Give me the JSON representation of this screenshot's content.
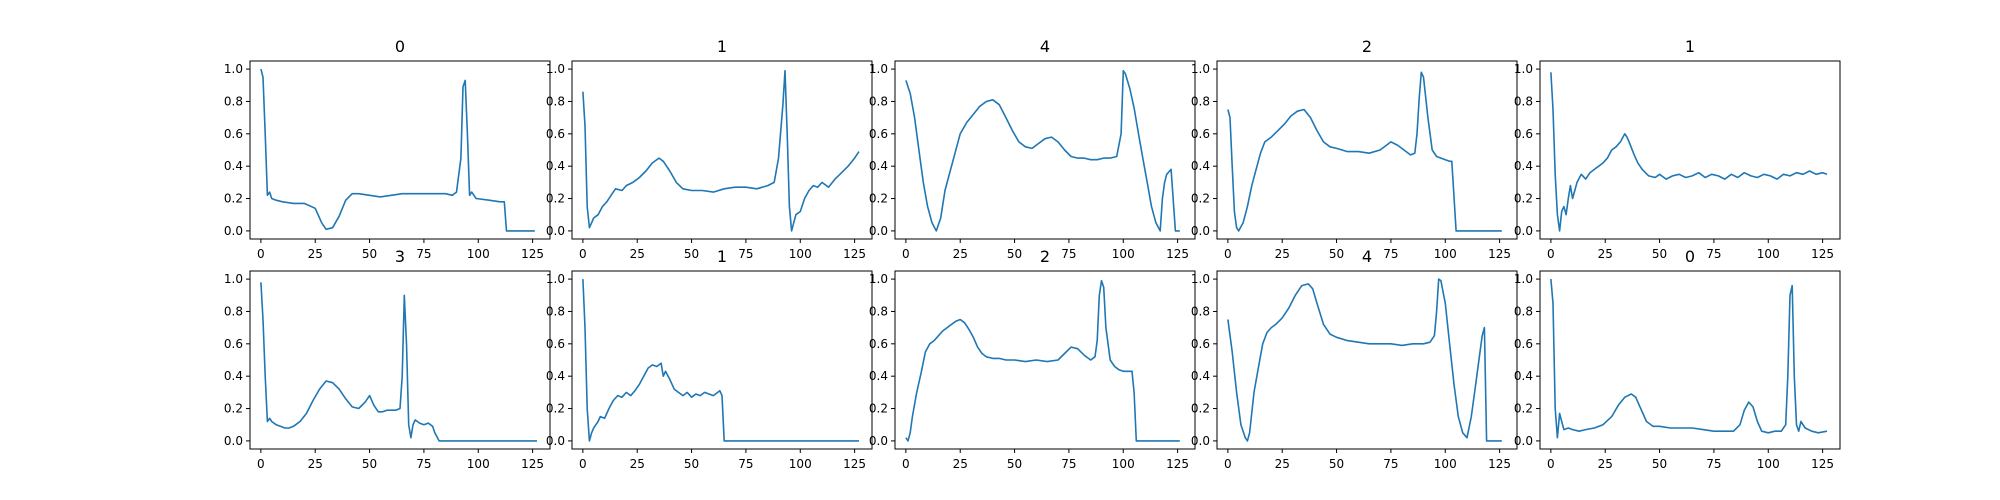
{
  "figure": {
    "rows": 2,
    "cols": 5
  },
  "style": {
    "line_color": "#1f77b4",
    "axis_color": "#000000",
    "background": "#ffffff"
  },
  "chart_data": [
    {
      "type": "line",
      "title": "0",
      "xlabel": "",
      "ylabel": "",
      "xlim": [
        -5,
        133
      ],
      "ylim": [
        -0.05,
        1.05
      ],
      "xticks": [
        0,
        25,
        50,
        75,
        100,
        125
      ],
      "yticks": [
        0.0,
        0.2,
        0.4,
        0.6,
        0.8,
        1.0
      ],
      "grid": false,
      "x": [
        0,
        1,
        2,
        3,
        4,
        5,
        7,
        10,
        15,
        20,
        25,
        28,
        30,
        33,
        36,
        39,
        42,
        45,
        50,
        55,
        60,
        65,
        70,
        75,
        80,
        85,
        88,
        90,
        92,
        93,
        94,
        95,
        96,
        97,
        99,
        105,
        110,
        112,
        113,
        118,
        122,
        126
      ],
      "y": [
        1.0,
        0.95,
        0.6,
        0.22,
        0.24,
        0.2,
        0.19,
        0.18,
        0.17,
        0.17,
        0.14,
        0.05,
        0.01,
        0.02,
        0.09,
        0.19,
        0.23,
        0.23,
        0.22,
        0.21,
        0.22,
        0.23,
        0.23,
        0.23,
        0.23,
        0.23,
        0.22,
        0.24,
        0.45,
        0.89,
        0.93,
        0.6,
        0.22,
        0.24,
        0.2,
        0.19,
        0.18,
        0.18,
        0.0,
        0.0,
        0.0,
        0.0
      ]
    },
    {
      "type": "line",
      "title": "1",
      "xlabel": "",
      "ylabel": "",
      "xlim": [
        -5,
        133
      ],
      "ylim": [
        -0.05,
        1.05
      ],
      "xticks": [
        0,
        25,
        50,
        75,
        100,
        125
      ],
      "yticks": [
        0.0,
        0.2,
        0.4,
        0.6,
        0.8,
        1.0
      ],
      "grid": false,
      "x": [
        0,
        1,
        2,
        3,
        4,
        5,
        7,
        9,
        11,
        13,
        15,
        18,
        20,
        23,
        26,
        29,
        32,
        35,
        37,
        40,
        43,
        46,
        50,
        55,
        60,
        65,
        70,
        75,
        80,
        85,
        88,
        90,
        92,
        93,
        94,
        95,
        96,
        97,
        98,
        100,
        102,
        104,
        106,
        108,
        110,
        113,
        116,
        119,
        122,
        125,
        127
      ],
      "y": [
        0.86,
        0.65,
        0.15,
        0.02,
        0.05,
        0.08,
        0.1,
        0.15,
        0.18,
        0.22,
        0.26,
        0.25,
        0.28,
        0.3,
        0.33,
        0.37,
        0.42,
        0.45,
        0.43,
        0.37,
        0.3,
        0.26,
        0.25,
        0.25,
        0.24,
        0.26,
        0.27,
        0.27,
        0.26,
        0.28,
        0.3,
        0.45,
        0.78,
        0.99,
        0.6,
        0.15,
        0.0,
        0.05,
        0.1,
        0.12,
        0.2,
        0.25,
        0.28,
        0.27,
        0.3,
        0.27,
        0.32,
        0.36,
        0.4,
        0.45,
        0.49
      ]
    },
    {
      "type": "line",
      "title": "4",
      "xlabel": "",
      "ylabel": "",
      "xlim": [
        -5,
        133
      ],
      "ylim": [
        -0.05,
        1.05
      ],
      "xticks": [
        0,
        25,
        50,
        75,
        100,
        125
      ],
      "yticks": [
        0.0,
        0.2,
        0.4,
        0.6,
        0.8,
        1.0
      ],
      "grid": false,
      "x": [
        0,
        2,
        4,
        6,
        8,
        10,
        12,
        14,
        16,
        18,
        20,
        22,
        25,
        28,
        31,
        34,
        37,
        40,
        43,
        46,
        49,
        52,
        55,
        58,
        61,
        64,
        67,
        70,
        73,
        76,
        79,
        82,
        85,
        88,
        91,
        94,
        97,
        99,
        100,
        101,
        103,
        105,
        107,
        109,
        111,
        113,
        115,
        117,
        118,
        119,
        120,
        122,
        124,
        126
      ],
      "y": [
        0.93,
        0.85,
        0.7,
        0.5,
        0.3,
        0.15,
        0.05,
        0.0,
        0.08,
        0.25,
        0.35,
        0.45,
        0.6,
        0.67,
        0.72,
        0.77,
        0.8,
        0.81,
        0.78,
        0.7,
        0.62,
        0.55,
        0.52,
        0.51,
        0.54,
        0.57,
        0.58,
        0.55,
        0.5,
        0.46,
        0.45,
        0.45,
        0.44,
        0.44,
        0.45,
        0.45,
        0.46,
        0.6,
        0.99,
        0.97,
        0.88,
        0.76,
        0.6,
        0.45,
        0.3,
        0.15,
        0.05,
        0.0,
        0.2,
        0.3,
        0.35,
        0.38,
        0.0,
        0.0
      ]
    },
    {
      "type": "line",
      "title": "2",
      "xlabel": "",
      "ylabel": "",
      "xlim": [
        -5,
        133
      ],
      "ylim": [
        -0.05,
        1.05
      ],
      "xticks": [
        0,
        25,
        50,
        75,
        100,
        125
      ],
      "yticks": [
        0.0,
        0.2,
        0.4,
        0.6,
        0.8,
        1.0
      ],
      "grid": false,
      "x": [
        0,
        1,
        2,
        3,
        4,
        5,
        7,
        9,
        11,
        13,
        15,
        17,
        20,
        23,
        26,
        29,
        32,
        35,
        38,
        41,
        44,
        47,
        50,
        55,
        60,
        65,
        70,
        73,
        75,
        78,
        81,
        84,
        86,
        87,
        88,
        89,
        90,
        92,
        94,
        96,
        98,
        100,
        102,
        103,
        105,
        110,
        115,
        120,
        126
      ],
      "y": [
        0.75,
        0.7,
        0.4,
        0.12,
        0.02,
        0.0,
        0.05,
        0.15,
        0.28,
        0.38,
        0.48,
        0.55,
        0.58,
        0.62,
        0.66,
        0.71,
        0.74,
        0.75,
        0.7,
        0.62,
        0.55,
        0.52,
        0.51,
        0.49,
        0.49,
        0.48,
        0.5,
        0.53,
        0.55,
        0.53,
        0.5,
        0.47,
        0.48,
        0.6,
        0.82,
        0.98,
        0.95,
        0.7,
        0.5,
        0.46,
        0.45,
        0.44,
        0.43,
        0.43,
        0.0,
        0.0,
        0.0,
        0.0,
        0.0
      ]
    },
    {
      "type": "line",
      "title": "1",
      "xlabel": "",
      "ylabel": "",
      "xlim": [
        -5,
        133
      ],
      "ylim": [
        -0.05,
        1.05
      ],
      "xticks": [
        0,
        25,
        50,
        75,
        100,
        125
      ],
      "yticks": [
        0.0,
        0.2,
        0.4,
        0.6,
        0.8,
        1.0
      ],
      "grid": false,
      "x": [
        0,
        1,
        2,
        3,
        4,
        5,
        6,
        7,
        8,
        9,
        10,
        11,
        12,
        14,
        16,
        18,
        20,
        22,
        24,
        26,
        28,
        30,
        32,
        34,
        35,
        36,
        38,
        40,
        42,
        45,
        48,
        50,
        53,
        56,
        59,
        62,
        65,
        68,
        71,
        74,
        77,
        80,
        83,
        86,
        89,
        92,
        95,
        98,
        101,
        104,
        107,
        110,
        113,
        116,
        119,
        122,
        125,
        127
      ],
      "y": [
        0.98,
        0.75,
        0.35,
        0.1,
        0.0,
        0.12,
        0.15,
        0.1,
        0.2,
        0.28,
        0.2,
        0.25,
        0.3,
        0.35,
        0.32,
        0.36,
        0.38,
        0.4,
        0.42,
        0.45,
        0.5,
        0.52,
        0.55,
        0.6,
        0.58,
        0.55,
        0.48,
        0.42,
        0.38,
        0.34,
        0.33,
        0.35,
        0.32,
        0.34,
        0.35,
        0.33,
        0.34,
        0.36,
        0.33,
        0.35,
        0.34,
        0.32,
        0.35,
        0.33,
        0.36,
        0.34,
        0.33,
        0.35,
        0.34,
        0.32,
        0.35,
        0.34,
        0.36,
        0.35,
        0.37,
        0.35,
        0.36,
        0.35
      ]
    },
    {
      "type": "line",
      "title": "3",
      "xlabel": "",
      "ylabel": "",
      "xlim": [
        -5,
        133
      ],
      "ylim": [
        -0.05,
        1.05
      ],
      "xticks": [
        0,
        25,
        50,
        75,
        100,
        125
      ],
      "yticks": [
        0.0,
        0.2,
        0.4,
        0.6,
        0.8,
        1.0
      ],
      "grid": false,
      "x": [
        0,
        1,
        2,
        3,
        4,
        5,
        7,
        9,
        11,
        13,
        15,
        18,
        21,
        24,
        27,
        30,
        33,
        36,
        39,
        42,
        45,
        48,
        50,
        52,
        54,
        56,
        58,
        60,
        62,
        64,
        65,
        66,
        67,
        68,
        69,
        70,
        71,
        73,
        75,
        77,
        79,
        80,
        82,
        90,
        100,
        110,
        120,
        127
      ],
      "y": [
        0.98,
        0.75,
        0.4,
        0.12,
        0.14,
        0.12,
        0.1,
        0.09,
        0.08,
        0.08,
        0.09,
        0.12,
        0.17,
        0.25,
        0.32,
        0.37,
        0.36,
        0.32,
        0.26,
        0.21,
        0.2,
        0.24,
        0.28,
        0.22,
        0.18,
        0.18,
        0.19,
        0.19,
        0.19,
        0.2,
        0.4,
        0.9,
        0.6,
        0.1,
        0.02,
        0.1,
        0.13,
        0.11,
        0.1,
        0.11,
        0.09,
        0.05,
        0.0,
        0.0,
        0.0,
        0.0,
        0.0,
        0.0
      ]
    },
    {
      "type": "line",
      "title": "1",
      "xlabel": "",
      "ylabel": "",
      "xlim": [
        -5,
        133
      ],
      "ylim": [
        -0.05,
        1.05
      ],
      "xticks": [
        0,
        25,
        50,
        75,
        100,
        125
      ],
      "yticks": [
        0.0,
        0.2,
        0.4,
        0.6,
        0.8,
        1.0
      ],
      "grid": false,
      "x": [
        0,
        1,
        2,
        3,
        4,
        5,
        6,
        7,
        8,
        10,
        12,
        14,
        16,
        18,
        20,
        22,
        24,
        26,
        28,
        30,
        32,
        34,
        36,
        37,
        38,
        40,
        42,
        44,
        46,
        48,
        50,
        52,
        54,
        56,
        58,
        60,
        62,
        63,
        64,
        65,
        70,
        80,
        90,
        100,
        110,
        120,
        127
      ],
      "y": [
        1.0,
        0.7,
        0.2,
        0.0,
        0.05,
        0.08,
        0.1,
        0.12,
        0.15,
        0.14,
        0.2,
        0.25,
        0.28,
        0.27,
        0.3,
        0.28,
        0.31,
        0.35,
        0.4,
        0.45,
        0.47,
        0.46,
        0.48,
        0.4,
        0.43,
        0.38,
        0.32,
        0.3,
        0.28,
        0.3,
        0.27,
        0.29,
        0.28,
        0.3,
        0.29,
        0.28,
        0.3,
        0.31,
        0.28,
        0.0,
        0.0,
        0.0,
        0.0,
        0.0,
        0.0,
        0.0,
        0.0
      ]
    },
    {
      "type": "line",
      "title": "2",
      "xlabel": "",
      "ylabel": "",
      "xlim": [
        -5,
        133
      ],
      "ylim": [
        -0.05,
        1.05
      ],
      "xticks": [
        0,
        25,
        50,
        75,
        100,
        125
      ],
      "yticks": [
        0.0,
        0.2,
        0.4,
        0.6,
        0.8,
        1.0
      ],
      "grid": false,
      "x": [
        0,
        1,
        2,
        3,
        5,
        7,
        9,
        11,
        13,
        15,
        17,
        19,
        21,
        23,
        25,
        27,
        29,
        31,
        33,
        35,
        37,
        40,
        43,
        46,
        50,
        55,
        60,
        65,
        70,
        73,
        76,
        79,
        82,
        85,
        87,
        88,
        89,
        90,
        91,
        92,
        94,
        96,
        98,
        100,
        102,
        104,
        105,
        106,
        110,
        115,
        120,
        126
      ],
      "y": [
        0.02,
        0.0,
        0.05,
        0.15,
        0.3,
        0.42,
        0.55,
        0.6,
        0.62,
        0.65,
        0.68,
        0.7,
        0.72,
        0.74,
        0.75,
        0.73,
        0.69,
        0.64,
        0.58,
        0.54,
        0.52,
        0.51,
        0.51,
        0.5,
        0.5,
        0.49,
        0.5,
        0.49,
        0.5,
        0.54,
        0.58,
        0.57,
        0.53,
        0.5,
        0.52,
        0.62,
        0.9,
        0.99,
        0.95,
        0.7,
        0.5,
        0.46,
        0.44,
        0.43,
        0.43,
        0.43,
        0.3,
        0.0,
        0.0,
        0.0,
        0.0,
        0.0
      ]
    },
    {
      "type": "line",
      "title": "4",
      "xlabel": "",
      "ylabel": "",
      "xlim": [
        -5,
        133
      ],
      "ylim": [
        -0.05,
        1.05
      ],
      "xticks": [
        0,
        25,
        50,
        75,
        100,
        125
      ],
      "yticks": [
        0.0,
        0.2,
        0.4,
        0.6,
        0.8,
        1.0
      ],
      "grid": false,
      "x": [
        0,
        2,
        4,
        6,
        8,
        9,
        10,
        12,
        14,
        16,
        18,
        20,
        22,
        25,
        28,
        31,
        34,
        37,
        39,
        41,
        44,
        47,
        50,
        55,
        60,
        65,
        70,
        75,
        80,
        85,
        90,
        93,
        95,
        96,
        97,
        98,
        100,
        102,
        104,
        106,
        108,
        110,
        112,
        114,
        116,
        117,
        118,
        119,
        120,
        122,
        124,
        126
      ],
      "y": [
        0.75,
        0.55,
        0.3,
        0.1,
        0.02,
        0.0,
        0.05,
        0.3,
        0.45,
        0.6,
        0.67,
        0.7,
        0.72,
        0.76,
        0.82,
        0.9,
        0.96,
        0.97,
        0.94,
        0.85,
        0.72,
        0.66,
        0.64,
        0.62,
        0.61,
        0.6,
        0.6,
        0.6,
        0.59,
        0.6,
        0.6,
        0.61,
        0.65,
        0.8,
        1.0,
        0.99,
        0.85,
        0.6,
        0.35,
        0.15,
        0.05,
        0.02,
        0.15,
        0.35,
        0.55,
        0.65,
        0.7,
        0.0,
        0.0,
        0.0,
        0.0,
        0.0
      ]
    },
    {
      "type": "line",
      "title": "0",
      "xlabel": "",
      "ylabel": "",
      "xlim": [
        -5,
        133
      ],
      "ylim": [
        -0.05,
        1.05
      ],
      "xticks": [
        0,
        25,
        50,
        75,
        100,
        125
      ],
      "yticks": [
        0.0,
        0.2,
        0.4,
        0.6,
        0.8,
        1.0
      ],
      "grid": false,
      "x": [
        0,
        1,
        2,
        3,
        4,
        5,
        6,
        8,
        10,
        13,
        16,
        20,
        24,
        28,
        31,
        34,
        37,
        39,
        41,
        44,
        47,
        50,
        55,
        60,
        65,
        70,
        75,
        80,
        84,
        87,
        89,
        91,
        93,
        95,
        97,
        100,
        103,
        106,
        108,
        109,
        110,
        111,
        112,
        113,
        114,
        115,
        117,
        120,
        123,
        127
      ],
      "y": [
        1.0,
        0.85,
        0.2,
        0.02,
        0.17,
        0.12,
        0.07,
        0.08,
        0.07,
        0.06,
        0.07,
        0.08,
        0.1,
        0.15,
        0.22,
        0.27,
        0.29,
        0.27,
        0.21,
        0.12,
        0.09,
        0.09,
        0.08,
        0.08,
        0.08,
        0.07,
        0.06,
        0.06,
        0.06,
        0.1,
        0.19,
        0.24,
        0.21,
        0.12,
        0.06,
        0.05,
        0.06,
        0.06,
        0.1,
        0.4,
        0.9,
        0.96,
        0.4,
        0.1,
        0.06,
        0.12,
        0.08,
        0.06,
        0.05,
        0.06
      ]
    }
  ]
}
